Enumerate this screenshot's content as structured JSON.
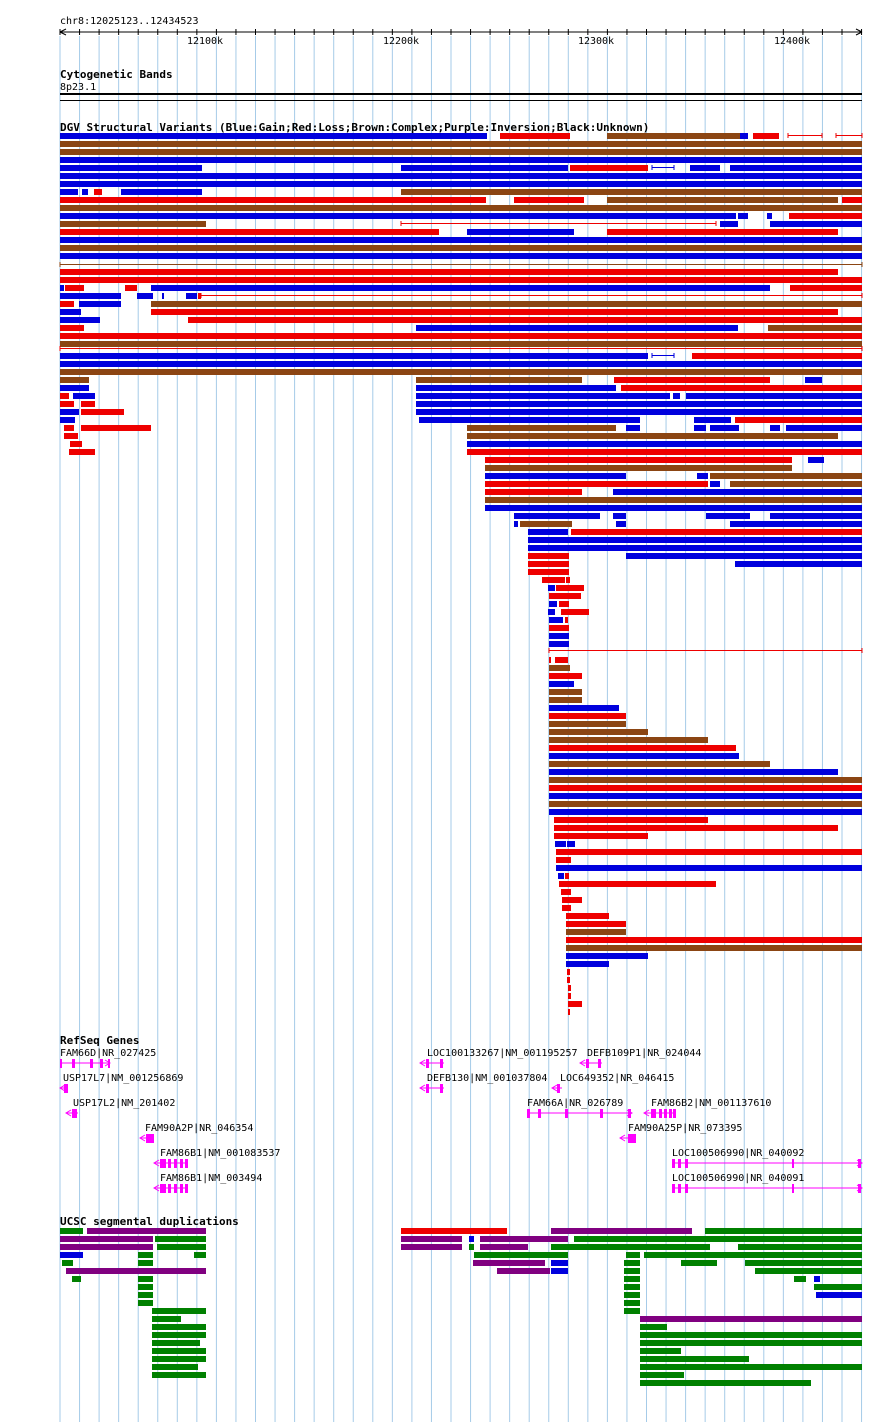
{
  "ruler": {
    "position_label": "chr8:12025123..12434523",
    "ticks": [
      "12100k",
      "12200k",
      "12300k",
      "12400k"
    ]
  },
  "cytoband": {
    "title": "Cytogenetic Bands",
    "band": "8p23.1"
  },
  "dgv": {
    "title": "DGV Structural Variants (Blue:Gain;Red:Loss;Brown:Complex;Purple:Inversion;Black:Unknown)"
  },
  "refseq": {
    "title": "RefSeq Genes",
    "genes": [
      "FAM66D|NR_027425",
      "USP17L7|NM_001256869",
      "USP17L2|NM_201402",
      "FAM90A2P|NR_046354",
      "FAM86B1|NM_001083537",
      "FAM86B1|NM_003494",
      "LOC100133267|NM_001195257",
      "DEFB109P1|NR_024044",
      "DEFB130|NM_001037804",
      "LOC649352|NR_046415",
      "FAM66A|NR_026789",
      "FAM86B2|NM_001137610",
      "FAM90A25P|NR_073395",
      "LOC100506990|NR_040092",
      "LOC100506990|NR_040091"
    ]
  },
  "segdup": {
    "title": "UCSC segmental duplications"
  },
  "colors": {
    "gain": "#0000dd",
    "loss": "#ee0000",
    "complex": "#8b4513",
    "gene": "#ff00ff",
    "segdup_green": "#008000",
    "segdup_purple": "#800080",
    "gridline": "#a6cbe8"
  }
}
